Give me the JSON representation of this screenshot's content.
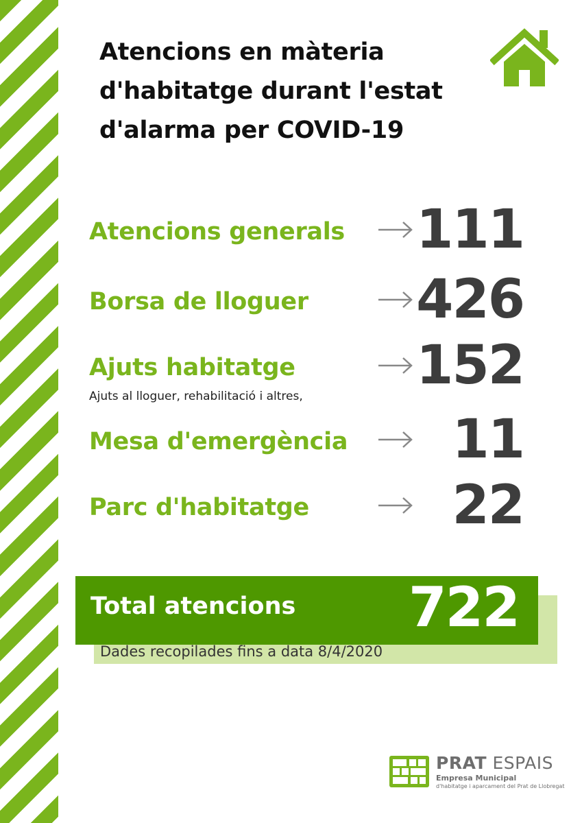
{
  "title": "Atencions en màteria d'habitatge durant l'estat d'alarma per COVID-19",
  "icons": {
    "home": "home-icon",
    "arrow": "arrow-right-icon"
  },
  "colors": {
    "accent": "#7ab51d",
    "total_bg": "#4e9800",
    "total_shadow": "#d2e6a8",
    "value": "#3d3d3d"
  },
  "items": [
    {
      "label": "Atencions generals",
      "sublabel": "",
      "value": "111"
    },
    {
      "label": "Borsa de lloguer",
      "sublabel": "",
      "value": "426"
    },
    {
      "label": "Ajuts habitatge",
      "sublabel": "Ajuts al lloguer, rehabilitació i altres,",
      "value": "152"
    },
    {
      "label": "Mesa d'emergència",
      "sublabel": "",
      "value": "11"
    },
    {
      "label": "Parc d'habitatge",
      "sublabel": "",
      "value": "22"
    }
  ],
  "total": {
    "label": "Total atencions",
    "value": "722"
  },
  "footnote": "Dades recopilades fins a data 8/4/2020",
  "logo": {
    "name_bold": "PRAT",
    "name_rest": " ESPAIS",
    "subtitle": "Empresa Municipal",
    "tagline": "d'habitatge i aparcament del Prat de Llobregat"
  }
}
